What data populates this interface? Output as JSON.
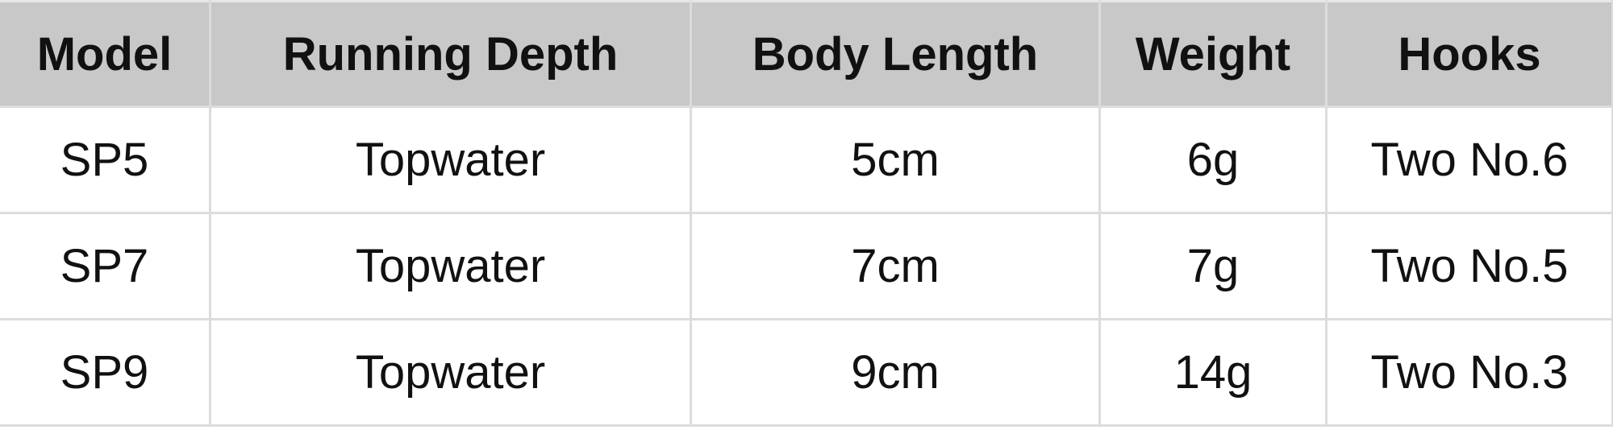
{
  "table": {
    "headers": [
      "Model",
      "Running Depth",
      "Body Length",
      "Weight",
      "Hooks"
    ],
    "rows": [
      [
        "SP5",
        "Topwater",
        "5cm",
        "6g",
        "Two No.6"
      ],
      [
        "SP7",
        "Topwater",
        "7cm",
        "7g",
        "Two No.5"
      ],
      [
        "SP9",
        "Topwater",
        "9cm",
        "14g",
        "Two No.3"
      ]
    ]
  },
  "colors": {
    "header_bg": "#c8c8c8",
    "border": "#dcdcdc"
  }
}
